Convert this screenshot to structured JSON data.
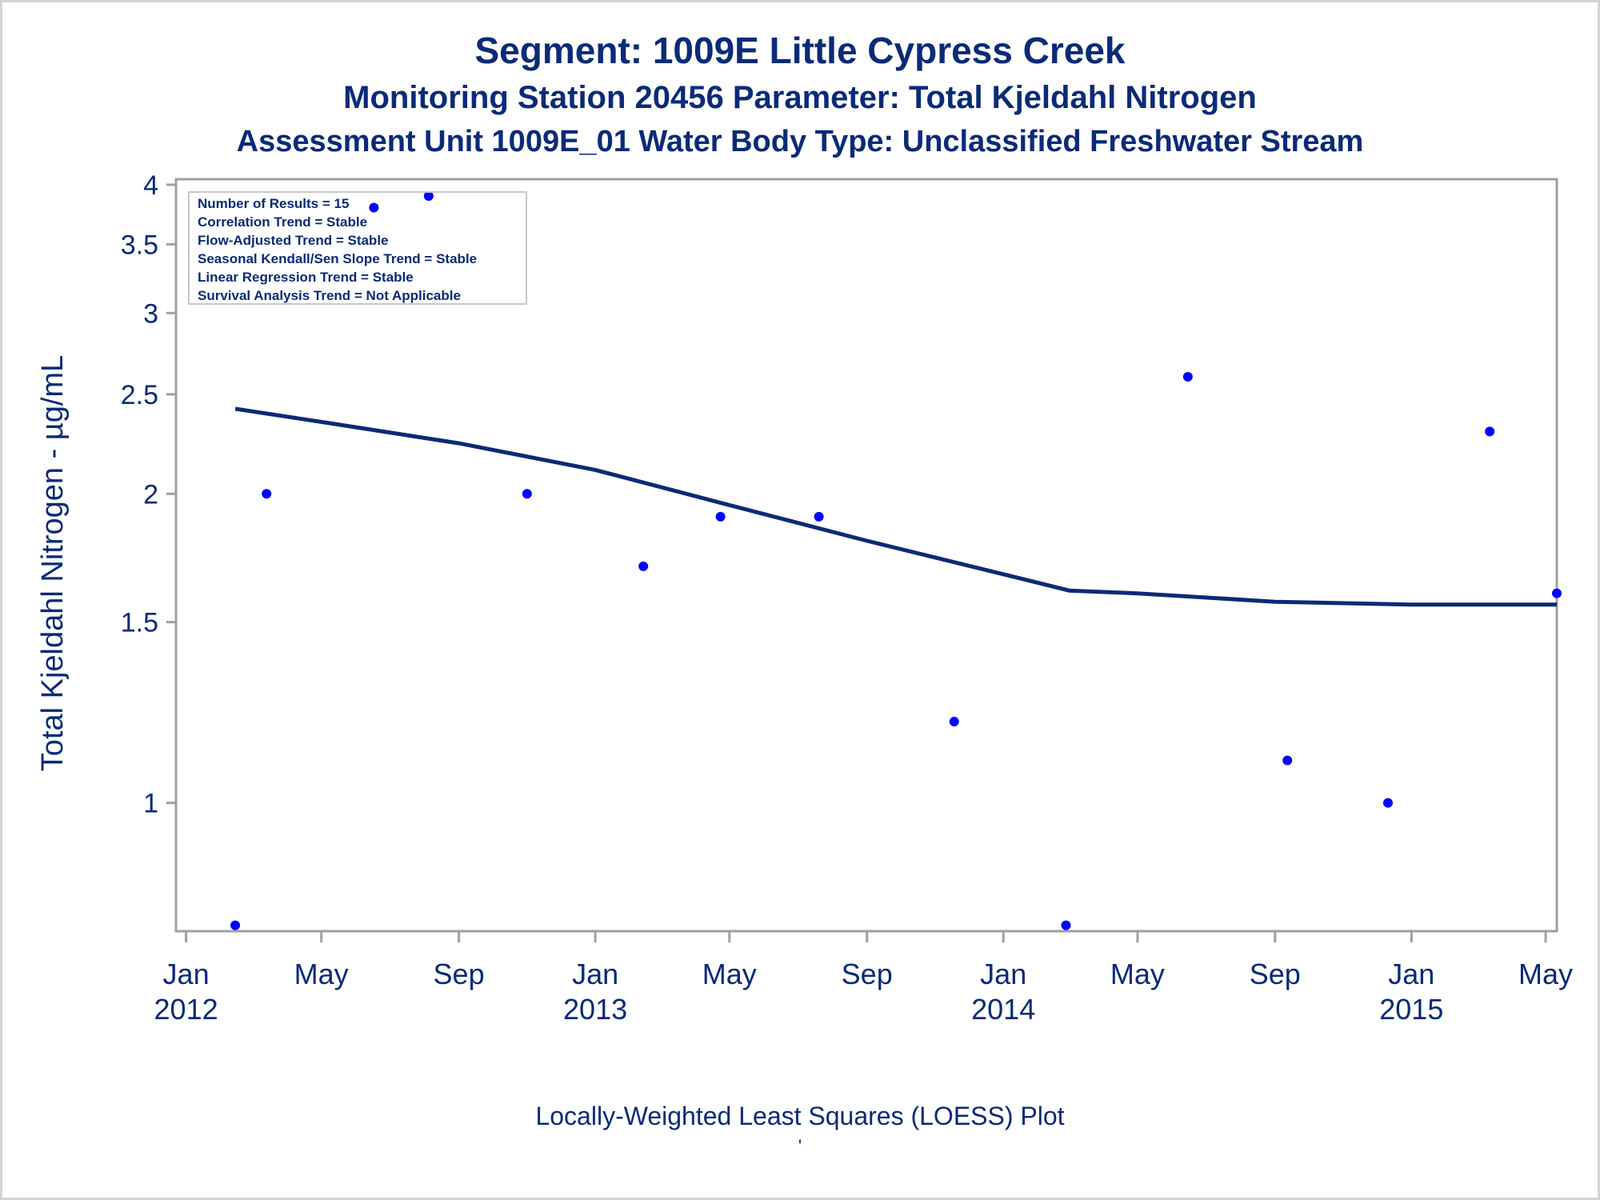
{
  "titles": {
    "line1": "Segment: 1009E  Little Cypress Creek",
    "line2": "Monitoring Station 20456 Parameter: Total Kjeldahl Nitrogen",
    "line3": "Assessment Unit 1009E_01   Water Body Type: Unclassified Freshwater Stream"
  },
  "footnote": "Locally-Weighted Least Squares (LOESS) Plot",
  "footnote_mark": "'",
  "legend": [
    "Number of Results = 15",
    "Correlation Trend = Stable",
    "Flow-Adjusted Trend = Stable",
    "Seasonal Kendall/Sen Slope Trend = Stable",
    "Linear Regression Trend = Stable",
    "Survival Analysis Trend = Not Applicable"
  ],
  "colors": {
    "text": "#0b2a78",
    "points": "#0000ff",
    "line": "#0b2a78",
    "frame": "#a0a0a0"
  },
  "chart_data": {
    "type": "scatter",
    "ylabel": "Total Kjeldahl Nitrogen -  µg/mL",
    "yscale": "log",
    "ylim": [
      0.75,
      4.05
    ],
    "yticks": [
      {
        "value": 1,
        "label": "1"
      },
      {
        "value": 1.5,
        "label": "1.5"
      },
      {
        "value": 2,
        "label": "2"
      },
      {
        "value": 2.5,
        "label": "2.5"
      },
      {
        "value": 3,
        "label": "3"
      },
      {
        "value": 3.5,
        "label": "3.5"
      },
      {
        "value": 4,
        "label": "4"
      }
    ],
    "xlim": [
      "2011-12-23",
      "2015-05-11"
    ],
    "xticks": [
      {
        "date": "2012-01-01",
        "month": "Jan",
        "year": "2012"
      },
      {
        "date": "2012-05-01",
        "month": "May",
        "year": ""
      },
      {
        "date": "2012-09-01",
        "month": "Sep",
        "year": ""
      },
      {
        "date": "2013-01-01",
        "month": "Jan",
        "year": "2013"
      },
      {
        "date": "2013-05-01",
        "month": "May",
        "year": ""
      },
      {
        "date": "2013-09-01",
        "month": "Sep",
        "year": ""
      },
      {
        "date": "2014-01-01",
        "month": "Jan",
        "year": "2014"
      },
      {
        "date": "2014-05-01",
        "month": "May",
        "year": ""
      },
      {
        "date": "2014-09-01",
        "month": "Sep",
        "year": ""
      },
      {
        "date": "2015-01-01",
        "month": "Jan",
        "year": "2015"
      },
      {
        "date": "2015-05-01",
        "month": "May",
        "year": ""
      }
    ],
    "points": [
      {
        "x": "2012-02-14",
        "y": 0.76
      },
      {
        "x": "2012-03-13",
        "y": 2.0
      },
      {
        "x": "2012-06-17",
        "y": 3.8
      },
      {
        "x": "2012-08-05",
        "y": 3.9
      },
      {
        "x": "2012-11-01",
        "y": 2.0
      },
      {
        "x": "2013-02-13",
        "y": 1.7
      },
      {
        "x": "2013-04-23",
        "y": 1.9
      },
      {
        "x": "2013-07-20",
        "y": 1.9
      },
      {
        "x": "2013-11-18",
        "y": 1.2
      },
      {
        "x": "2014-02-26",
        "y": 0.76
      },
      {
        "x": "2014-06-15",
        "y": 2.6
      },
      {
        "x": "2014-09-12",
        "y": 1.1
      },
      {
        "x": "2014-12-11",
        "y": 1.0
      },
      {
        "x": "2015-03-12",
        "y": 2.3
      },
      {
        "x": "2015-05-11",
        "y": 1.6
      }
    ],
    "loess": [
      {
        "x": "2012-02-14",
        "y": 2.42
      },
      {
        "x": "2012-05-01",
        "y": 2.35
      },
      {
        "x": "2012-09-01",
        "y": 2.24
      },
      {
        "x": "2013-01-01",
        "y": 2.11
      },
      {
        "x": "2013-05-01",
        "y": 1.95
      },
      {
        "x": "2013-09-01",
        "y": 1.8
      },
      {
        "x": "2014-01-01",
        "y": 1.67
      },
      {
        "x": "2014-03-01",
        "y": 1.61
      },
      {
        "x": "2014-05-01",
        "y": 1.6
      },
      {
        "x": "2014-09-01",
        "y": 1.57
      },
      {
        "x": "2015-01-01",
        "y": 1.56
      },
      {
        "x": "2015-05-11",
        "y": 1.56
      }
    ]
  }
}
